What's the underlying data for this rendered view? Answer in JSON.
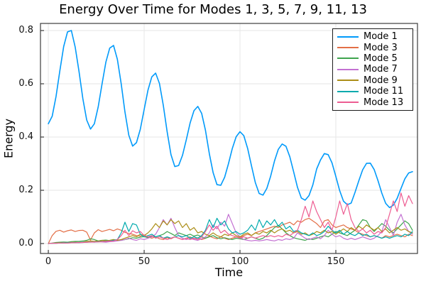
{
  "style": {
    "background": "#ffffff",
    "grid_color": "#e6e6e6",
    "frame_color": "#3c3c3c",
    "text_color": "#000000"
  },
  "chart_data": {
    "type": "line",
    "title": "Energy Over Time for Modes 1, 3, 5, 7, 9, 11, 13",
    "xlabel": "Time",
    "ylabel": "Energy",
    "xlim": [
      -4.1,
      192.6
    ],
    "ylim": [
      -0.0373,
      0.8267
    ],
    "xticks": [
      0,
      50,
      100,
      150
    ],
    "xtick_labels": [
      "0",
      "50",
      "100",
      "150"
    ],
    "yticks": [
      0.0,
      0.2,
      0.4,
      0.6,
      0.8
    ],
    "ytick_labels": [
      "0.0",
      "0.2",
      "0.4",
      "0.6",
      "0.8"
    ],
    "grid": true,
    "legend_position": "top-right",
    "t_start": 0,
    "t_step": 2,
    "series": [
      {
        "name": "Mode 1",
        "color": "#009AFA",
        "width": 1.6,
        "values": [
          0.45,
          0.478,
          0.552,
          0.649,
          0.74,
          0.795,
          0.8,
          0.738,
          0.646,
          0.544,
          0.464,
          0.43,
          0.45,
          0.513,
          0.599,
          0.681,
          0.734,
          0.744,
          0.692,
          0.6,
          0.494,
          0.407,
          0.366,
          0.379,
          0.429,
          0.503,
          0.576,
          0.626,
          0.64,
          0.601,
          0.519,
          0.42,
          0.334,
          0.289,
          0.293,
          0.331,
          0.39,
          0.453,
          0.499,
          0.515,
          0.489,
          0.425,
          0.338,
          0.266,
          0.221,
          0.219,
          0.249,
          0.3,
          0.357,
          0.401,
          0.42,
          0.405,
          0.357,
          0.292,
          0.229,
          0.188,
          0.182,
          0.207,
          0.253,
          0.31,
          0.354,
          0.374,
          0.365,
          0.326,
          0.269,
          0.211,
          0.171,
          0.163,
          0.18,
          0.22,
          0.28,
          0.314,
          0.338,
          0.334,
          0.303,
          0.252,
          0.199,
          0.159,
          0.146,
          0.152,
          0.192,
          0.236,
          0.277,
          0.301,
          0.302,
          0.278,
          0.236,
          0.189,
          0.151,
          0.135,
          0.144,
          0.17,
          0.207,
          0.243,
          0.265,
          0.27
        ]
      },
      {
        "name": "Mode 3",
        "color": "#E36F47",
        "width": 1.2,
        "values": [
          0.0,
          0.03,
          0.046,
          0.05,
          0.043,
          0.048,
          0.051,
          0.045,
          0.049,
          0.05,
          0.043,
          0.013,
          0.04,
          0.052,
          0.045,
          0.049,
          0.053,
          0.048,
          0.055,
          0.05,
          0.042,
          0.038,
          0.035,
          0.03,
          0.028,
          0.032,
          0.025,
          0.02,
          0.025,
          0.018,
          0.015,
          0.022,
          0.018,
          0.025,
          0.02,
          0.015,
          0.02,
          0.025,
          0.018,
          0.022,
          0.015,
          0.02,
          0.028,
          0.022,
          0.018,
          0.025,
          0.02,
          0.015,
          0.02,
          0.025,
          0.022,
          0.03,
          0.035,
          0.03,
          0.04,
          0.045,
          0.05,
          0.055,
          0.06,
          0.065,
          0.06,
          0.07,
          0.075,
          0.08,
          0.07,
          0.085,
          0.08,
          0.09,
          0.095,
          0.085,
          0.075,
          0.06,
          0.085,
          0.09,
          0.07,
          0.06,
          0.065,
          0.07,
          0.06,
          0.055,
          0.05,
          0.04,
          0.035,
          0.03,
          0.025,
          0.03,
          0.025,
          0.02,
          0.03,
          0.025,
          0.03,
          0.035,
          0.03,
          0.025,
          0.035,
          0.03
        ]
      },
      {
        "name": "Mode 5",
        "color": "#3EA44E",
        "width": 1.2,
        "values": [
          0.0,
          0.002,
          0.004,
          0.005,
          0.006,
          0.005,
          0.007,
          0.008,
          0.008,
          0.01,
          0.012,
          0.018,
          0.015,
          0.01,
          0.012,
          0.013,
          0.011,
          0.013,
          0.014,
          0.012,
          0.015,
          0.018,
          0.022,
          0.02,
          0.024,
          0.026,
          0.022,
          0.028,
          0.025,
          0.03,
          0.035,
          0.045,
          0.038,
          0.03,
          0.04,
          0.035,
          0.03,
          0.035,
          0.028,
          0.032,
          0.025,
          0.02,
          0.025,
          0.03,
          0.022,
          0.018,
          0.022,
          0.018,
          0.015,
          0.02,
          0.018,
          0.015,
          0.02,
          0.025,
          0.02,
          0.015,
          0.02,
          0.03,
          0.045,
          0.06,
          0.068,
          0.055,
          0.04,
          0.03,
          0.022,
          0.018,
          0.015,
          0.012,
          0.018,
          0.015,
          0.02,
          0.025,
          0.03,
          0.025,
          0.035,
          0.045,
          0.04,
          0.035,
          0.03,
          0.04,
          0.05,
          0.07,
          0.09,
          0.085,
          0.06,
          0.045,
          0.06,
          0.075,
          0.065,
          0.05,
          0.04,
          0.055,
          0.07,
          0.085,
          0.075,
          0.05
        ]
      },
      {
        "name": "Mode 7",
        "color": "#C371D2",
        "width": 1.2,
        "values": [
          0.0,
          0.001,
          0.002,
          0.002,
          0.003,
          0.002,
          0.003,
          0.004,
          0.003,
          0.004,
          0.005,
          0.006,
          0.005,
          0.007,
          0.006,
          0.005,
          0.007,
          0.008,
          0.01,
          0.012,
          0.015,
          0.02,
          0.015,
          0.012,
          0.018,
          0.015,
          0.02,
          0.025,
          0.035,
          0.06,
          0.09,
          0.07,
          0.095,
          0.06,
          0.03,
          0.02,
          0.015,
          0.02,
          0.015,
          0.012,
          0.018,
          0.025,
          0.04,
          0.07,
          0.055,
          0.08,
          0.065,
          0.11,
          0.075,
          0.04,
          0.025,
          0.015,
          0.012,
          0.01,
          0.012,
          0.01,
          0.012,
          0.015,
          0.012,
          0.01,
          0.015,
          0.012,
          0.018,
          0.015,
          0.02,
          0.04,
          0.03,
          0.02,
          0.015,
          0.02,
          0.025,
          0.018,
          0.03,
          0.05,
          0.035,
          0.025,
          0.03,
          0.02,
          0.015,
          0.02,
          0.015,
          0.02,
          0.025,
          0.02,
          0.015,
          0.02,
          0.03,
          0.045,
          0.09,
          0.06,
          0.03,
          0.08,
          0.11,
          0.07,
          0.045,
          0.035
        ]
      },
      {
        "name": "Mode 9",
        "color": "#AC8E18",
        "width": 1.2,
        "values": [
          0.0,
          0.001,
          0.002,
          0.003,
          0.002,
          0.003,
          0.004,
          0.005,
          0.004,
          0.006,
          0.008,
          0.01,
          0.008,
          0.01,
          0.012,
          0.01,
          0.012,
          0.015,
          0.012,
          0.015,
          0.02,
          0.025,
          0.03,
          0.025,
          0.035,
          0.03,
          0.04,
          0.055,
          0.075,
          0.06,
          0.085,
          0.07,
          0.09,
          0.075,
          0.085,
          0.06,
          0.075,
          0.05,
          0.06,
          0.04,
          0.045,
          0.035,
          0.03,
          0.04,
          0.03,
          0.025,
          0.035,
          0.03,
          0.04,
          0.03,
          0.025,
          0.035,
          0.04,
          0.03,
          0.04,
          0.035,
          0.045,
          0.04,
          0.05,
          0.04,
          0.05,
          0.055,
          0.045,
          0.05,
          0.04,
          0.045,
          0.035,
          0.04,
          0.03,
          0.035,
          0.045,
          0.04,
          0.05,
          0.04,
          0.045,
          0.035,
          0.045,
          0.055,
          0.045,
          0.06,
          0.05,
          0.065,
          0.055,
          0.07,
          0.06,
          0.05,
          0.06,
          0.045,
          0.055,
          0.04,
          0.05,
          0.06,
          0.05,
          0.055,
          0.045,
          0.04
        ]
      },
      {
        "name": "Mode 11",
        "color": "#00AAAD",
        "width": 1.2,
        "values": [
          0.0,
          0.001,
          0.001,
          0.002,
          0.002,
          0.003,
          0.003,
          0.004,
          0.004,
          0.005,
          0.005,
          0.006,
          0.006,
          0.007,
          0.008,
          0.008,
          0.01,
          0.012,
          0.015,
          0.04,
          0.08,
          0.045,
          0.075,
          0.07,
          0.035,
          0.025,
          0.03,
          0.035,
          0.025,
          0.03,
          0.02,
          0.025,
          0.02,
          0.025,
          0.03,
          0.025,
          0.03,
          0.02,
          0.025,
          0.02,
          0.03,
          0.05,
          0.09,
          0.06,
          0.095,
          0.07,
          0.085,
          0.055,
          0.04,
          0.045,
          0.035,
          0.04,
          0.05,
          0.07,
          0.05,
          0.09,
          0.06,
          0.085,
          0.07,
          0.09,
          0.065,
          0.08,
          0.055,
          0.065,
          0.045,
          0.05,
          0.04,
          0.035,
          0.03,
          0.04,
          0.03,
          0.035,
          0.045,
          0.065,
          0.05,
          0.04,
          0.05,
          0.035,
          0.045,
          0.035,
          0.03,
          0.04,
          0.03,
          0.035,
          0.025,
          0.03,
          0.025,
          0.02,
          0.025,
          0.02,
          0.025,
          0.03,
          0.025,
          0.035,
          0.03,
          0.045
        ]
      },
      {
        "name": "Mode 13",
        "color": "#ED5D92",
        "width": 1.2,
        "values": [
          0.0,
          0.001,
          0.001,
          0.002,
          0.002,
          0.002,
          0.003,
          0.003,
          0.004,
          0.004,
          0.005,
          0.005,
          0.006,
          0.006,
          0.007,
          0.008,
          0.009,
          0.01,
          0.015,
          0.03,
          0.05,
          0.03,
          0.048,
          0.04,
          0.045,
          0.03,
          0.025,
          0.03,
          0.02,
          0.025,
          0.02,
          0.015,
          0.02,
          0.025,
          0.02,
          0.015,
          0.02,
          0.015,
          0.02,
          0.015,
          0.025,
          0.045,
          0.07,
          0.05,
          0.065,
          0.04,
          0.05,
          0.035,
          0.03,
          0.025,
          0.02,
          0.025,
          0.02,
          0.025,
          0.02,
          0.025,
          0.03,
          0.025,
          0.03,
          0.025,
          0.03,
          0.025,
          0.035,
          0.03,
          0.04,
          0.05,
          0.09,
          0.14,
          0.1,
          0.16,
          0.12,
          0.09,
          0.06,
          0.08,
          0.05,
          0.1,
          0.16,
          0.11,
          0.15,
          0.09,
          0.06,
          0.045,
          0.055,
          0.04,
          0.05,
          0.035,
          0.045,
          0.04,
          0.06,
          0.11,
          0.16,
          0.12,
          0.19,
          0.14,
          0.18,
          0.15
        ]
      }
    ]
  }
}
